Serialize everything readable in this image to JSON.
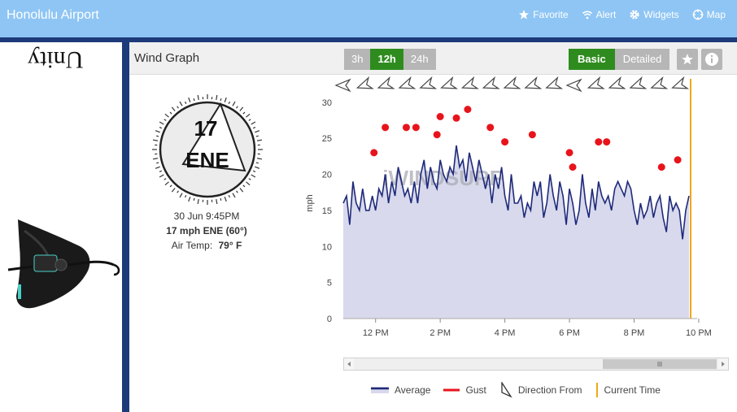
{
  "header": {
    "title": "Honolulu Airport",
    "nav": [
      {
        "label": "Favorite",
        "icon": "star-icon"
      },
      {
        "label": "Alert",
        "icon": "wifi-icon"
      },
      {
        "label": "Widgets",
        "icon": "gear-icon"
      },
      {
        "label": "Map",
        "icon": "crosshair-icon"
      }
    ]
  },
  "sidebar": {
    "ad_text": "Unity"
  },
  "panel": {
    "title": "Wind Graph",
    "time_ranges": [
      "3h",
      "12h",
      "24h"
    ],
    "active_range": "12h",
    "modes": [
      "Basic",
      "Detailed"
    ],
    "active_mode": "Basic"
  },
  "current": {
    "speed": "17",
    "direction": "ENE",
    "datetime": "30 Jun 9:45PM",
    "summary": "17 mph ENE (60°)",
    "air_temp_label": "Air Temp:",
    "air_temp_value": "79° F"
  },
  "legend": {
    "average": "Average",
    "gust": "Gust",
    "direction": "Direction From",
    "current_time": "Current Time"
  },
  "colors": {
    "header_bg": "#8ec5f4",
    "dark_blue": "#1d3a7a",
    "average_line": "#1f2a7a",
    "average_fill": "#d8d9ec",
    "gust_dot": "#e8141c",
    "active_btn": "#2e8c1e",
    "current_time_line": "#f0a61a"
  },
  "chart_data": {
    "type": "line",
    "ylabel": "mph",
    "ylim": [
      0,
      32
    ],
    "yticks": [
      0,
      5,
      10,
      15,
      20,
      25,
      30
    ],
    "x_range_hours": [
      11.0,
      21.75
    ],
    "xticks": [
      {
        "h": 12,
        "label": "12 PM"
      },
      {
        "h": 14,
        "label": "2 PM"
      },
      {
        "h": 16,
        "label": "4 PM"
      },
      {
        "h": 18,
        "label": "6 PM"
      },
      {
        "h": 20,
        "label": "8 PM"
      },
      {
        "h": 22,
        "label": "10 PM"
      }
    ],
    "current_time_hour": 21.75,
    "watermark": "iWINDSURF",
    "series": [
      {
        "name": "Average",
        "x": [
          11.0,
          11.1,
          11.2,
          11.3,
          11.4,
          11.5,
          11.6,
          11.7,
          11.8,
          11.9,
          12.0,
          12.1,
          12.2,
          12.3,
          12.4,
          12.5,
          12.6,
          12.7,
          12.8,
          12.9,
          13.0,
          13.1,
          13.2,
          13.3,
          13.4,
          13.5,
          13.6,
          13.7,
          13.8,
          13.9,
          14.0,
          14.1,
          14.2,
          14.3,
          14.4,
          14.5,
          14.6,
          14.7,
          14.8,
          14.9,
          15.0,
          15.1,
          15.2,
          15.3,
          15.4,
          15.5,
          15.6,
          15.7,
          15.8,
          15.9,
          16.0,
          16.1,
          16.2,
          16.3,
          16.4,
          16.5,
          16.6,
          16.7,
          16.8,
          16.9,
          17.0,
          17.1,
          17.2,
          17.3,
          17.4,
          17.5,
          17.6,
          17.7,
          17.8,
          17.9,
          18.0,
          18.1,
          18.2,
          18.3,
          18.4,
          18.5,
          18.6,
          18.7,
          18.8,
          18.9,
          19.0,
          19.1,
          19.2,
          19.3,
          19.4,
          19.5,
          19.6,
          19.7,
          19.8,
          19.9,
          20.0,
          20.1,
          20.2,
          20.3,
          20.4,
          20.5,
          20.6,
          20.7,
          20.8,
          20.9,
          21.0,
          21.1,
          21.2,
          21.3,
          21.4,
          21.5,
          21.6,
          21.7
        ],
        "values": [
          16,
          17,
          13,
          19,
          16,
          15,
          18,
          15,
          15,
          17,
          15,
          18,
          17,
          20,
          16,
          19,
          17,
          21,
          19,
          17,
          18,
          16,
          19,
          16,
          20,
          22,
          18,
          21,
          19,
          18,
          22,
          20,
          19,
          21,
          20,
          24,
          21,
          22,
          19,
          23,
          21,
          19,
          22,
          20,
          18,
          20,
          16,
          20,
          18,
          21,
          17,
          15,
          20,
          16,
          16,
          17,
          14,
          16,
          15,
          19,
          17,
          19,
          14,
          16,
          20,
          17,
          15,
          19,
          17,
          13,
          18,
          16,
          13,
          15,
          20,
          16,
          14,
          18,
          15,
          19,
          17,
          16,
          17,
          15,
          18,
          19,
          18,
          17,
          19,
          18,
          15,
          13,
          16,
          14,
          15,
          17,
          14,
          16,
          17,
          14,
          12,
          17,
          15,
          16,
          15,
          11,
          15,
          17
        ]
      },
      {
        "name": "Gust",
        "x": [
          11.95,
          12.3,
          12.95,
          13.25,
          13.9,
          14.0,
          14.5,
          14.85,
          15.55,
          16.0,
          16.85,
          18.0,
          18.1,
          18.9,
          19.15,
          20.85,
          21.35
        ],
        "values": [
          23,
          26.5,
          26.5,
          26.5,
          25.5,
          28,
          27.8,
          29,
          26.5,
          24.5,
          25.5,
          23,
          21,
          24.5,
          24.5,
          21,
          22
        ]
      }
    ],
    "direction_arrows": [
      {
        "h": 11.0,
        "from": "E"
      },
      {
        "h": 11.65,
        "from": "ENE"
      },
      {
        "h": 12.3,
        "from": "ENE"
      },
      {
        "h": 12.95,
        "from": "ENE"
      },
      {
        "h": 13.6,
        "from": "ENE"
      },
      {
        "h": 14.25,
        "from": "ENE"
      },
      {
        "h": 14.9,
        "from": "ENE"
      },
      {
        "h": 15.55,
        "from": "ENE"
      },
      {
        "h": 16.2,
        "from": "ENE"
      },
      {
        "h": 16.85,
        "from": "ENE"
      },
      {
        "h": 17.5,
        "from": "ENE"
      },
      {
        "h": 18.15,
        "from": "E"
      },
      {
        "h": 18.8,
        "from": "ENE"
      },
      {
        "h": 19.45,
        "from": "ENE"
      },
      {
        "h": 20.1,
        "from": "ENE"
      },
      {
        "h": 20.75,
        "from": "ENE"
      },
      {
        "h": 21.4,
        "from": "ENE"
      }
    ]
  }
}
